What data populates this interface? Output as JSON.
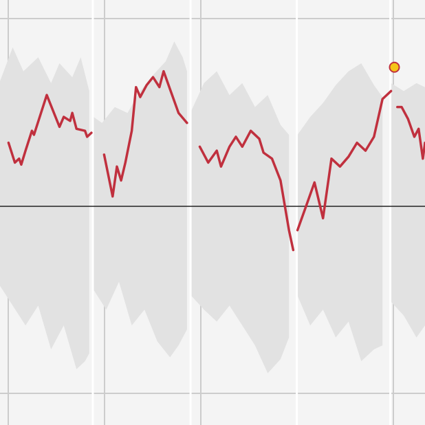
{
  "colors": {
    "background": "#f4f4f4",
    "grid": "#cccccc",
    "band": "#e2e2e2",
    "baseline": "#222222",
    "line": "#c0303e",
    "marker_fill": "#f5c518",
    "marker_stroke": "#c0303e",
    "separator": "#ffffff"
  },
  "chart_data": {
    "type": "line",
    "title": "",
    "xlabel": "",
    "ylabel": "",
    "ylim": [
      -0.9,
      0.9
    ],
    "xlim": [
      0,
      1
    ],
    "baseline": 0,
    "grid": true,
    "legend": "none",
    "segments": [
      {
        "name": "",
        "band_upper": [
          [
            0.0,
            0.63
          ],
          [
            0.03,
            0.8
          ],
          [
            0.055,
            0.68
          ],
          [
            0.09,
            0.75
          ],
          [
            0.12,
            0.62
          ],
          [
            0.14,
            0.72
          ],
          [
            0.17,
            0.65
          ],
          [
            0.19,
            0.75
          ],
          [
            0.21,
            0.58
          ]
        ],
        "band_lower": [
          [
            0.0,
            -0.4
          ],
          [
            0.03,
            -0.5
          ],
          [
            0.06,
            -0.6
          ],
          [
            0.09,
            -0.5
          ],
          [
            0.12,
            -0.72
          ],
          [
            0.15,
            -0.6
          ],
          [
            0.18,
            -0.82
          ],
          [
            0.2,
            -0.78
          ],
          [
            0.21,
            -0.74
          ]
        ],
        "line": [
          [
            0.02,
            0.32
          ],
          [
            0.035,
            0.22
          ],
          [
            0.045,
            0.24
          ],
          [
            0.05,
            0.21
          ],
          [
            0.06,
            0.28
          ],
          [
            0.075,
            0.38
          ],
          [
            0.08,
            0.36
          ],
          [
            0.11,
            0.56
          ],
          [
            0.14,
            0.4
          ],
          [
            0.15,
            0.45
          ],
          [
            0.165,
            0.43
          ],
          [
            0.17,
            0.47
          ],
          [
            0.18,
            0.39
          ],
          [
            0.2,
            0.38
          ],
          [
            0.205,
            0.35
          ],
          [
            0.215,
            0.37
          ]
        ]
      },
      {
        "name": "",
        "band_upper": [
          [
            0.22,
            0.45
          ],
          [
            0.24,
            0.42
          ],
          [
            0.27,
            0.5
          ],
          [
            0.3,
            0.47
          ],
          [
            0.33,
            0.58
          ],
          [
            0.36,
            0.66
          ],
          [
            0.39,
            0.73
          ],
          [
            0.41,
            0.83
          ],
          [
            0.43,
            0.75
          ],
          [
            0.44,
            0.68
          ]
        ],
        "band_lower": [
          [
            0.22,
            -0.42
          ],
          [
            0.25,
            -0.52
          ],
          [
            0.28,
            -0.38
          ],
          [
            0.31,
            -0.6
          ],
          [
            0.34,
            -0.52
          ],
          [
            0.37,
            -0.68
          ],
          [
            0.4,
            -0.76
          ],
          [
            0.42,
            -0.7
          ],
          [
            0.44,
            -0.62
          ]
        ],
        "line": [
          [
            0.245,
            0.26
          ],
          [
            0.265,
            0.05
          ],
          [
            0.275,
            0.2
          ],
          [
            0.285,
            0.13
          ],
          [
            0.295,
            0.22
          ],
          [
            0.31,
            0.38
          ],
          [
            0.32,
            0.6
          ],
          [
            0.33,
            0.55
          ],
          [
            0.345,
            0.61
          ],
          [
            0.36,
            0.65
          ],
          [
            0.375,
            0.6
          ],
          [
            0.385,
            0.68
          ],
          [
            0.4,
            0.59
          ],
          [
            0.42,
            0.47
          ],
          [
            0.44,
            0.42
          ]
        ]
      },
      {
        "name": "",
        "band_upper": [
          [
            0.45,
            0.48
          ],
          [
            0.48,
            0.62
          ],
          [
            0.51,
            0.68
          ],
          [
            0.54,
            0.56
          ],
          [
            0.57,
            0.62
          ],
          [
            0.6,
            0.5
          ],
          [
            0.63,
            0.56
          ],
          [
            0.66,
            0.41
          ],
          [
            0.68,
            0.36
          ]
        ],
        "band_lower": [
          [
            0.45,
            -0.45
          ],
          [
            0.48,
            -0.52
          ],
          [
            0.51,
            -0.58
          ],
          [
            0.54,
            -0.5
          ],
          [
            0.57,
            -0.6
          ],
          [
            0.6,
            -0.7
          ],
          [
            0.63,
            -0.84
          ],
          [
            0.66,
            -0.77
          ],
          [
            0.68,
            -0.66
          ]
        ],
        "line": [
          [
            0.47,
            0.3
          ],
          [
            0.49,
            0.22
          ],
          [
            0.51,
            0.28
          ],
          [
            0.52,
            0.2
          ],
          [
            0.54,
            0.3
          ],
          [
            0.555,
            0.35
          ],
          [
            0.57,
            0.3
          ],
          [
            0.59,
            0.38
          ],
          [
            0.61,
            0.34
          ],
          [
            0.62,
            0.27
          ],
          [
            0.64,
            0.24
          ],
          [
            0.66,
            0.13
          ],
          [
            0.68,
            -0.12
          ],
          [
            0.69,
            -0.22
          ]
        ]
      },
      {
        "name": "",
        "band_upper": [
          [
            0.7,
            0.36
          ],
          [
            0.73,
            0.45
          ],
          [
            0.76,
            0.52
          ],
          [
            0.79,
            0.61
          ],
          [
            0.82,
            0.68
          ],
          [
            0.85,
            0.72
          ],
          [
            0.88,
            0.61
          ],
          [
            0.9,
            0.55
          ]
        ],
        "band_lower": [
          [
            0.7,
            -0.45
          ],
          [
            0.73,
            -0.6
          ],
          [
            0.76,
            -0.52
          ],
          [
            0.79,
            -0.66
          ],
          [
            0.82,
            -0.58
          ],
          [
            0.85,
            -0.78
          ],
          [
            0.88,
            -0.72
          ],
          [
            0.9,
            -0.7
          ]
        ],
        "line": [
          [
            0.7,
            -0.12
          ],
          [
            0.72,
            0.0
          ],
          [
            0.74,
            0.12
          ],
          [
            0.76,
            -0.06
          ],
          [
            0.78,
            0.24
          ],
          [
            0.8,
            0.2
          ],
          [
            0.82,
            0.25
          ],
          [
            0.84,
            0.32
          ],
          [
            0.86,
            0.28
          ],
          [
            0.88,
            0.35
          ],
          [
            0.9,
            0.54
          ],
          [
            0.92,
            0.58
          ]
        ]
      },
      {
        "name": "",
        "band_upper": [
          [
            0.92,
            0.62
          ],
          [
            0.95,
            0.58
          ],
          [
            0.98,
            0.62
          ],
          [
            1.0,
            0.6
          ]
        ],
        "band_lower": [
          [
            0.92,
            -0.48
          ],
          [
            0.95,
            -0.55
          ],
          [
            0.98,
            -0.66
          ],
          [
            1.0,
            -0.6
          ]
        ],
        "line": [
          [
            0.935,
            0.5
          ],
          [
            0.945,
            0.5
          ],
          [
            0.96,
            0.44
          ],
          [
            0.975,
            0.35
          ],
          [
            0.985,
            0.39
          ],
          [
            0.995,
            0.24
          ],
          [
            1.0,
            0.32
          ]
        ]
      }
    ],
    "highlight_point": {
      "x": 0.928,
      "y": 0.7
    }
  }
}
